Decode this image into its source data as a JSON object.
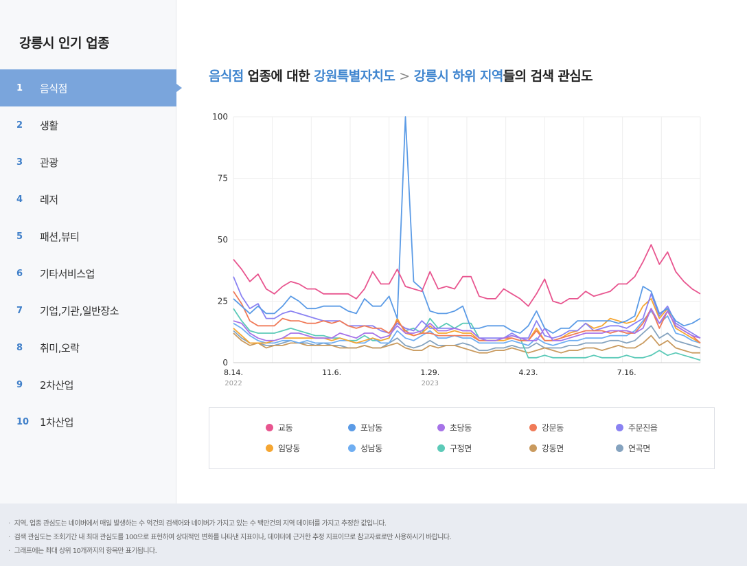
{
  "sidebar": {
    "title": "강릉시 인기 업종",
    "items": [
      {
        "num": "1",
        "label": "음식점",
        "active": true
      },
      {
        "num": "2",
        "label": "생활"
      },
      {
        "num": "3",
        "label": "관광"
      },
      {
        "num": "4",
        "label": "레저"
      },
      {
        "num": "5",
        "label": "패션,뷰티"
      },
      {
        "num": "6",
        "label": "기타서비스업"
      },
      {
        "num": "7",
        "label": "기업,기관,일반장소"
      },
      {
        "num": "8",
        "label": "취미,오락"
      },
      {
        "num": "9",
        "label": "2차산업"
      },
      {
        "num": "10",
        "label": "1차산업"
      }
    ]
  },
  "heading": {
    "category": "음식점",
    "text1": " 업종에 대한 ",
    "region": "강원특별자치도",
    "separator": ">",
    "subregion": "강릉시 하위 지역",
    "text2": "들의 검색 관심도"
  },
  "notes": [
    "지역, 업종 관심도는 네이버에서 매일 발생하는 수 억건의 검색어와 네이버가 가지고 있는 수 백만건의 지역 데이터를 가지고 추정한 값입니다.",
    "검색 관심도는 조회기간 내 최대 관심도를 100으로 표현하여 상대적인 변화를 나타낸 지표이나, 데이터에 근거한 추정 지표이므로 참고자료로만 사용하시기 바랍니다.",
    "그래프에는 최대 상위 10개까지의 항목만 표기됩니다."
  ],
  "chart_data": {
    "type": "line",
    "ylim": [
      0,
      100
    ],
    "yticks": [
      0,
      25,
      50,
      75,
      100
    ],
    "grid": true,
    "legend_position": "bottom",
    "x_tick_labels": [
      {
        "label": "8.14.",
        "year": "2022"
      },
      {
        "label": "11.6.",
        "year": ""
      },
      {
        "label": "1.29.",
        "year": "2023"
      },
      {
        "label": "4.23.",
        "year": ""
      },
      {
        "label": "7.16.",
        "year": ""
      }
    ],
    "x_tick_indices": [
      0,
      12,
      24,
      36,
      48
    ],
    "series": [
      {
        "name": "교동",
        "color": "#e8558f",
        "values": [
          42,
          38,
          33,
          36,
          30,
          28,
          31,
          33,
          32,
          30,
          30,
          28,
          28,
          28,
          28,
          26,
          30,
          37,
          32,
          32,
          38,
          31,
          30,
          29,
          37,
          30,
          31,
          30,
          35,
          35,
          27,
          26,
          26,
          30,
          28,
          26,
          23,
          28,
          34,
          25,
          24,
          26,
          26,
          29,
          27,
          28,
          29,
          32,
          32,
          35,
          41,
          48,
          40,
          45,
          37,
          33,
          30,
          28
        ]
      },
      {
        "name": "포남동",
        "color": "#5b9be6",
        "values": [
          26,
          23,
          20,
          23,
          20,
          20,
          23,
          27,
          25,
          22,
          22,
          23,
          23,
          23,
          21,
          20,
          26,
          23,
          23,
          27,
          18,
          100,
          33,
          30,
          21,
          20,
          20,
          21,
          23,
          14,
          14,
          15,
          15,
          15,
          13,
          12,
          15,
          21,
          14,
          12,
          14,
          14,
          17,
          17,
          17,
          17,
          17,
          16,
          17,
          19,
          31,
          29,
          20,
          22,
          17,
          15,
          16,
          18
        ]
      },
      {
        "name": "초당동",
        "color": "#a673e8",
        "values": [
          17,
          16,
          12,
          10,
          9,
          9,
          10,
          12,
          12,
          11,
          10,
          10,
          10,
          12,
          11,
          10,
          12,
          12,
          10,
          11,
          15,
          12,
          12,
          13,
          16,
          13,
          13,
          14,
          13,
          13,
          10,
          9,
          9,
          10,
          11,
          10,
          9,
          9,
          14,
          9,
          9,
          10,
          11,
          12,
          12,
          12,
          13,
          13,
          13,
          12,
          14,
          22,
          16,
          21,
          15,
          13,
          11,
          10
        ]
      },
      {
        "name": "강문동",
        "color": "#f07a58",
        "values": [
          29,
          24,
          17,
          15,
          15,
          15,
          18,
          17,
          17,
          16,
          16,
          17,
          16,
          17,
          15,
          14,
          15,
          14,
          14,
          12,
          17,
          13,
          11,
          12,
          12,
          11,
          11,
          11,
          11,
          11,
          9,
          9,
          9,
          10,
          10,
          9,
          9,
          13,
          9,
          9,
          10,
          11,
          12,
          13,
          13,
          13,
          12,
          13,
          12,
          12,
          16,
          22,
          14,
          21,
          15,
          13,
          11,
          8
        ]
      },
      {
        "name": "주문진읍",
        "color": "#8a82f2",
        "values": [
          35,
          27,
          22,
          24,
          18,
          18,
          20,
          21,
          20,
          19,
          18,
          17,
          17,
          17,
          15,
          15,
          15,
          15,
          13,
          12,
          16,
          14,
          13,
          17,
          14,
          14,
          14,
          14,
          13,
          13,
          10,
          10,
          10,
          10,
          12,
          10,
          10,
          17,
          11,
          10,
          11,
          13,
          13,
          16,
          13,
          14,
          15,
          15,
          14,
          16,
          18,
          28,
          19,
          23,
          16,
          14,
          12,
          10
        ]
      },
      {
        "name": "임당동",
        "color": "#f5a632",
        "values": [
          14,
          11,
          8,
          8,
          8,
          9,
          10,
          10,
          10,
          10,
          10,
          10,
          9,
          10,
          9,
          8,
          9,
          10,
          9,
          10,
          18,
          12,
          11,
          12,
          15,
          12,
          12,
          13,
          12,
          12,
          9,
          9,
          9,
          9,
          10,
          9,
          9,
          14,
          9,
          9,
          10,
          12,
          13,
          16,
          14,
          15,
          18,
          17,
          16,
          17,
          23,
          26,
          18,
          22,
          14,
          12,
          10,
          8
        ]
      },
      {
        "name": "성남동",
        "color": "#6faef2",
        "values": [
          16,
          14,
          11,
          9,
          8,
          8,
          9,
          9,
          8,
          9,
          8,
          8,
          8,
          9,
          9,
          8,
          8,
          10,
          8,
          8,
          13,
          10,
          9,
          11,
          13,
          10,
          10,
          11,
          10,
          10,
          8,
          8,
          8,
          8,
          9,
          8,
          7,
          10,
          8,
          7,
          8,
          9,
          9,
          10,
          10,
          10,
          11,
          11,
          11,
          13,
          17,
          21,
          16,
          19,
          12,
          11,
          9,
          8
        ]
      },
      {
        "name": "구정면",
        "color": "#5ccab8",
        "values": [
          22,
          17,
          13,
          12,
          12,
          12,
          13,
          14,
          13,
          12,
          11,
          11,
          10,
          10,
          9,
          9,
          11,
          9,
          9,
          10,
          17,
          13,
          14,
          12,
          18,
          14,
          16,
          14,
          16,
          16,
          10,
          9,
          9,
          10,
          11,
          10,
          2,
          2,
          3,
          2,
          2,
          2,
          2,
          2,
          3,
          2,
          2,
          2,
          3,
          2,
          2,
          3,
          5,
          3,
          4,
          3,
          2,
          1
        ]
      },
      {
        "name": "강동면",
        "color": "#c99a5e",
        "values": [
          12,
          9,
          7,
          8,
          6,
          7,
          7,
          8,
          8,
          7,
          7,
          7,
          7,
          6,
          6,
          6,
          7,
          6,
          6,
          7,
          8,
          6,
          5,
          5,
          7,
          6,
          7,
          7,
          6,
          5,
          4,
          4,
          5,
          5,
          6,
          5,
          4,
          5,
          6,
          5,
          4,
          5,
          5,
          6,
          6,
          5,
          6,
          7,
          6,
          6,
          8,
          11,
          7,
          9,
          6,
          5,
          4,
          4
        ]
      },
      {
        "name": "연곡면",
        "color": "#85a3bf",
        "values": [
          13,
          10,
          8,
          8,
          7,
          7,
          8,
          9,
          8,
          8,
          7,
          8,
          7,
          7,
          6,
          6,
          7,
          6,
          6,
          8,
          10,
          7,
          6,
          7,
          9,
          7,
          7,
          7,
          8,
          7,
          5,
          5,
          6,
          6,
          7,
          6,
          6,
          8,
          6,
          6,
          6,
          7,
          7,
          8,
          8,
          8,
          9,
          9,
          8,
          9,
          12,
          15,
          10,
          12,
          9,
          8,
          7,
          6
        ]
      }
    ]
  }
}
